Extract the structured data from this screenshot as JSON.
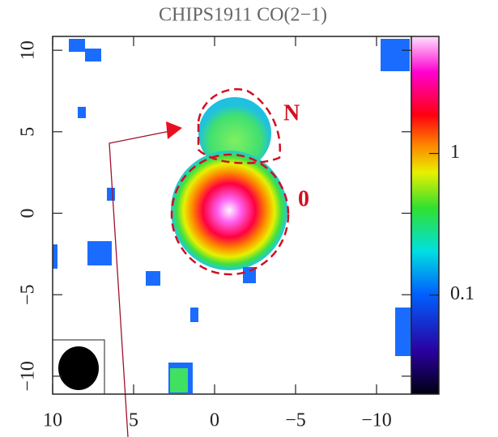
{
  "chart_data": {
    "type": "image",
    "title": "CHIPS1911 CO(2−1)",
    "xlim": [
      10,
      -12.15
    ],
    "ylim": [
      -11.1,
      10.85
    ],
    "xticks": [
      10,
      5,
      0,
      {
        "value": -5,
        "label": "−5"
      },
      {
        "value": -10,
        "label": "−10"
      }
    ],
    "yticks": [
      {
        "value": -10,
        "label": "−10"
      },
      {
        "value": -5,
        "label": "−5"
      },
      0,
      5,
      10
    ],
    "colorbar": {
      "scale": "log",
      "lim": [
        0.02,
        6.7
      ],
      "ticks": [
        0.1,
        1
      ]
    },
    "annotations": [
      "N",
      "0"
    ]
  }
}
